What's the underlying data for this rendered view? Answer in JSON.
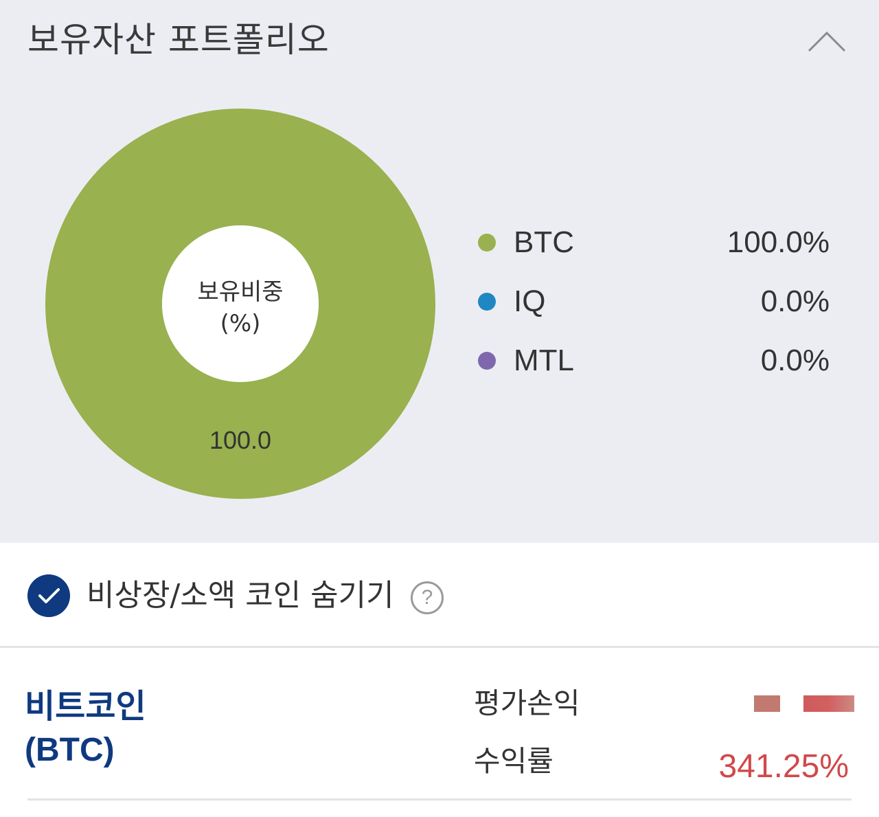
{
  "portfolio": {
    "title": "보유자산 포트폴리오",
    "center_label_line1": "보유비중",
    "center_label_line2": "(%)"
  },
  "chart_data": {
    "type": "pie",
    "categories": [
      "BTC",
      "IQ",
      "MTL"
    ],
    "values": [
      100.0,
      0.0,
      0.0
    ],
    "colors": [
      "#99b14e",
      "#1f87c1",
      "#7f67ae"
    ],
    "data_labels": [
      "100.0"
    ],
    "legend_values": [
      "100.0%",
      "0.0%",
      "0.0%"
    ],
    "legend_position": "right"
  },
  "filter": {
    "hide_label": "비상장/소액 코인 숨기기",
    "checked": true,
    "help_symbol": "?"
  },
  "holding": {
    "name": "비트코인",
    "code": "(BTC)",
    "pnl_label": "평가손익",
    "rate_label": "수익률",
    "rate_value": "341.25%"
  },
  "icons": {
    "collapse": "chevron-up-icon",
    "check": "checkmark-icon",
    "help": "question-circle-icon"
  },
  "colors": {
    "accent": "#0f3a80",
    "profit": "#d0494b",
    "panel_bg": "#ecedf3"
  }
}
